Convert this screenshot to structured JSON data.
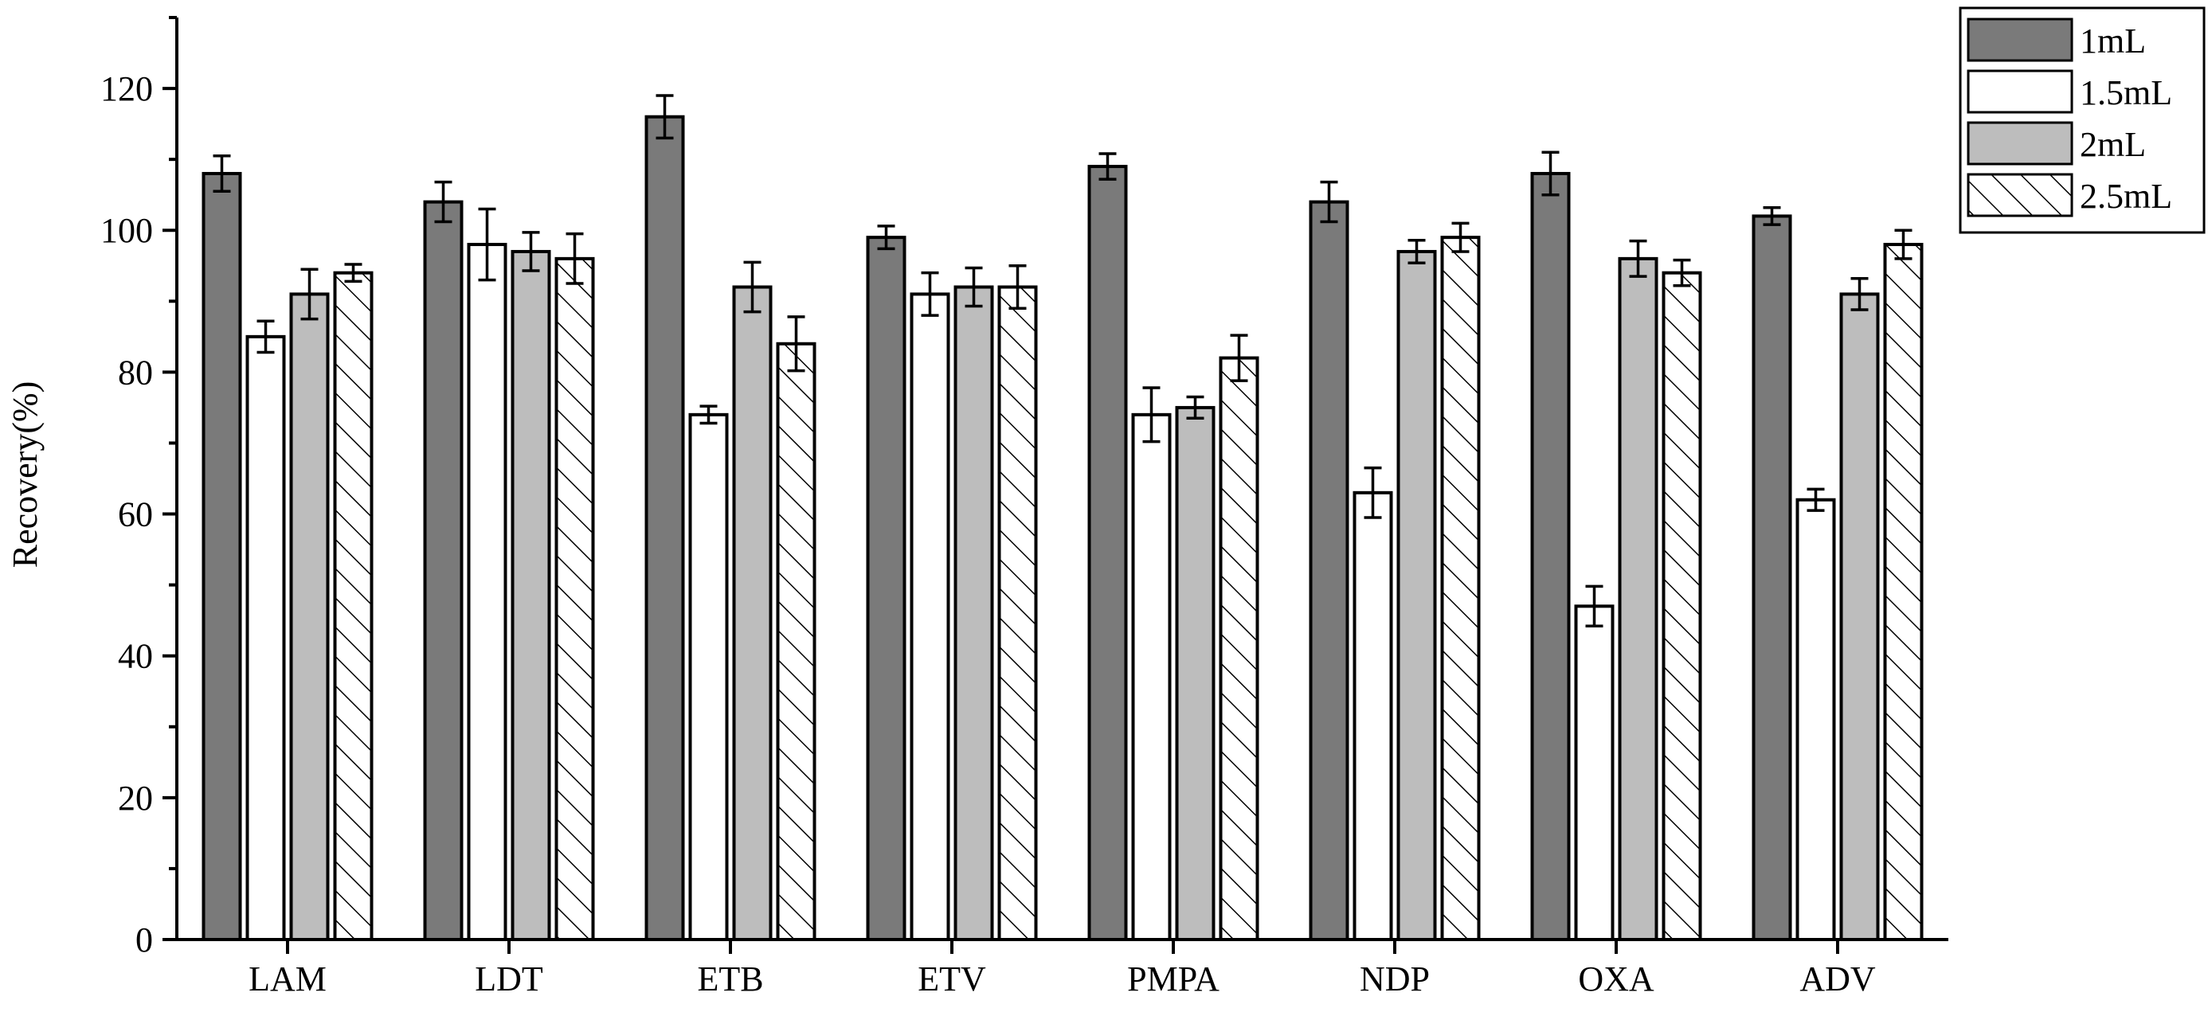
{
  "chart_data": {
    "type": "bar",
    "title": "",
    "xlabel": "",
    "ylabel": "Recovery(%)",
    "ylim": [
      0,
      130
    ],
    "yticks": [
      0,
      20,
      40,
      60,
      80,
      100,
      120
    ],
    "grid": false,
    "legend_position": "top-right",
    "categories": [
      "LAM",
      "LDT",
      "ETB",
      "ETV",
      "PMPA",
      "NDP",
      "OXA",
      "ADV"
    ],
    "series": [
      {
        "name": "1mL",
        "fill": "#7a7a7a",
        "pattern": "solid",
        "values": [
          108,
          104,
          116,
          99,
          109,
          104,
          108,
          102
        ],
        "errors": [
          2.5,
          2.8,
          3.0,
          1.6,
          1.8,
          2.8,
          3.0,
          1.2
        ]
      },
      {
        "name": "1.5mL",
        "fill": "#ffffff",
        "pattern": "solid",
        "values": [
          85,
          98,
          74,
          91,
          74,
          63,
          47,
          62
        ],
        "errors": [
          2.2,
          5.0,
          1.2,
          3.0,
          3.8,
          3.5,
          2.8,
          1.5
        ]
      },
      {
        "name": "2mL",
        "fill": "#bdbdbd",
        "pattern": "solid",
        "values": [
          91,
          97,
          92,
          92,
          75,
          97,
          96,
          91
        ],
        "errors": [
          3.5,
          2.7,
          3.5,
          2.7,
          1.5,
          1.6,
          2.5,
          2.2
        ]
      },
      {
        "name": "2.5mL",
        "fill": "#ffffff",
        "pattern": "hatch",
        "values": [
          94,
          96,
          84,
          92,
          82,
          99,
          94,
          98
        ],
        "errors": [
          1.2,
          3.5,
          3.8,
          3.0,
          3.2,
          2.0,
          1.8,
          2.0
        ]
      }
    ]
  }
}
